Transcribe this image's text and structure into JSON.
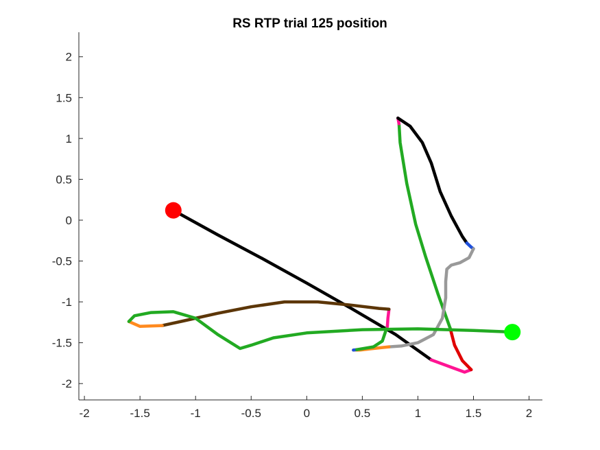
{
  "chart_data": {
    "type": "line",
    "title": "RS  RTP trial 125 position",
    "xlabel": "",
    "ylabel": "",
    "xlim": [
      -2.05,
      2.12
    ],
    "ylim": [
      -2.2,
      2.3
    ],
    "xticks": [
      -2,
      -1.5,
      -1,
      -0.5,
      0,
      0.5,
      1,
      1.5,
      2
    ],
    "xtick_labels": [
      "-2",
      "-1.5",
      "-1",
      "-0.5",
      "0",
      "0.5",
      "1",
      "1.5",
      "2"
    ],
    "yticks": [
      -2,
      -1.5,
      -1,
      -0.5,
      0,
      0.5,
      1,
      1.5,
      2
    ],
    "ytick_labels": [
      "-2",
      "-1.5",
      "-1",
      "-0.5",
      "0",
      "0.5",
      "1",
      "1.5",
      "2"
    ],
    "grid": false,
    "box": "axes on left and bottom only",
    "markers": [
      {
        "role": "start",
        "color": "#ff0000",
        "x": -1.2,
        "y": 0.12
      },
      {
        "role": "end",
        "color": "#00ff00",
        "x": 1.85,
        "y": -1.37
      }
    ],
    "segments": [
      {
        "color": "#000000",
        "points": [
          [
            -1.2,
            0.12
          ],
          [
            -0.8,
            -0.18
          ],
          [
            -0.4,
            -0.47
          ],
          [
            0,
            -0.77
          ],
          [
            0.4,
            -1.08
          ],
          [
            0.8,
            -1.4
          ],
          [
            1.12,
            -1.71
          ]
        ]
      },
      {
        "color": "#ff1493",
        "points": [
          [
            1.12,
            -1.71
          ],
          [
            1.3,
            -1.8
          ],
          [
            1.42,
            -1.86
          ],
          [
            1.48,
            -1.83
          ]
        ]
      },
      {
        "color": "#e00000",
        "points": [
          [
            1.48,
            -1.83
          ],
          [
            1.4,
            -1.72
          ],
          [
            1.33,
            -1.53
          ],
          [
            1.29,
            -1.32
          ]
        ]
      },
      {
        "color": "#22aa22",
        "points": [
          [
            1.29,
            -1.32
          ],
          [
            1.18,
            -0.9
          ],
          [
            1.07,
            -0.45
          ],
          [
            0.98,
            -0.05
          ],
          [
            0.9,
            0.45
          ],
          [
            0.84,
            0.95
          ],
          [
            0.83,
            1.18
          ]
        ]
      },
      {
        "color": "#ff1493",
        "points": [
          [
            0.83,
            1.18
          ],
          [
            0.82,
            1.25
          ]
        ]
      },
      {
        "color": "#000000",
        "points": [
          [
            0.82,
            1.25
          ],
          [
            0.93,
            1.15
          ],
          [
            1.04,
            0.95
          ],
          [
            1.12,
            0.7
          ],
          [
            1.2,
            0.35
          ],
          [
            1.3,
            0.05
          ],
          [
            1.4,
            -0.2
          ],
          [
            1.44,
            -0.28
          ]
        ]
      },
      {
        "color": "#1e50dc",
        "points": [
          [
            1.44,
            -0.28
          ],
          [
            1.48,
            -0.33
          ],
          [
            1.5,
            -0.35
          ]
        ]
      },
      {
        "color": "#999999",
        "points": [
          [
            1.5,
            -0.35
          ],
          [
            1.46,
            -0.46
          ],
          [
            1.38,
            -0.52
          ],
          [
            1.3,
            -0.55
          ],
          [
            1.26,
            -0.6
          ],
          [
            1.25,
            -0.75
          ],
          [
            1.25,
            -0.95
          ],
          [
            1.22,
            -1.2
          ],
          [
            1.14,
            -1.4
          ],
          [
            1.0,
            -1.5
          ],
          [
            0.85,
            -1.54
          ],
          [
            0.74,
            -1.55
          ]
        ]
      },
      {
        "color": "#ff8a1f",
        "points": [
          [
            0.74,
            -1.55
          ],
          [
            0.6,
            -1.57
          ],
          [
            0.48,
            -1.59
          ],
          [
            0.42,
            -1.59
          ]
        ]
      },
      {
        "color": "#1e50dc",
        "points": [
          [
            0.42,
            -1.59
          ],
          [
            0.45,
            -1.585
          ]
        ]
      },
      {
        "color": "#22aa22",
        "points": [
          [
            0.45,
            -1.585
          ],
          [
            0.6,
            -1.55
          ],
          [
            0.68,
            -1.48
          ],
          [
            0.71,
            -1.36
          ],
          [
            0.725,
            -1.3
          ]
        ]
      },
      {
        "color": "#ff1493",
        "points": [
          [
            0.725,
            -1.3
          ],
          [
            0.73,
            -1.2
          ],
          [
            0.74,
            -1.09
          ]
        ]
      },
      {
        "color": "#5c3608",
        "points": [
          [
            0.74,
            -1.09
          ],
          [
            0.65,
            -1.08
          ],
          [
            0.4,
            -1.04
          ],
          [
            0.1,
            -1.0
          ],
          [
            -0.2,
            -1.0
          ],
          [
            -0.5,
            -1.06
          ],
          [
            -0.8,
            -1.14
          ],
          [
            -1.1,
            -1.23
          ],
          [
            -1.3,
            -1.29
          ]
        ]
      },
      {
        "color": "#ff8a1f",
        "points": [
          [
            -1.3,
            -1.29
          ],
          [
            -1.5,
            -1.3
          ],
          [
            -1.6,
            -1.24
          ]
        ]
      },
      {
        "color": "#22aa22",
        "points": [
          [
            -1.6,
            -1.24
          ],
          [
            -1.55,
            -1.17
          ],
          [
            -1.4,
            -1.13
          ],
          [
            -1.2,
            -1.12
          ],
          [
            -1.0,
            -1.2
          ],
          [
            -0.8,
            -1.4
          ],
          [
            -0.6,
            -1.57
          ],
          [
            -0.5,
            -1.53
          ],
          [
            -0.3,
            -1.44
          ],
          [
            0,
            -1.38
          ],
          [
            0.5,
            -1.34
          ],
          [
            1.0,
            -1.33
          ],
          [
            1.5,
            -1.35
          ],
          [
            1.86,
            -1.37
          ]
        ]
      },
      {
        "color": "#5c3608",
        "points": [
          [
            1.86,
            -1.37
          ],
          [
            1.88,
            -1.36
          ]
        ]
      }
    ]
  }
}
